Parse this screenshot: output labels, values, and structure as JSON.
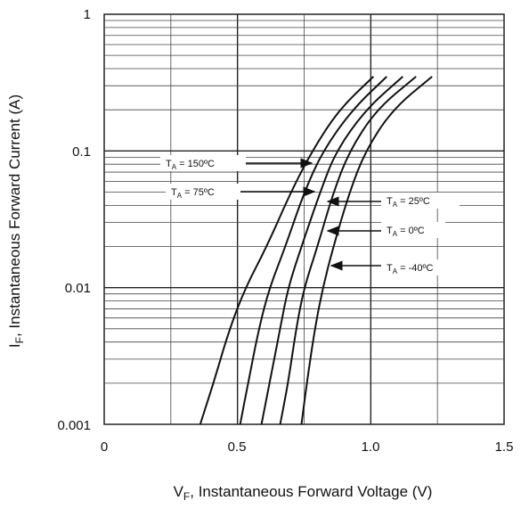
{
  "chart_data": {
    "type": "line",
    "xlabel_main": "V",
    "xlabel_sub": "F",
    "xlabel_rest": ", Instantaneous Forward Voltage (V)",
    "ylabel_main": "I",
    "ylabel_sub": "F",
    "ylabel_rest": ", Instantaneous Forward Current (A)",
    "x_ticks": [
      "0",
      "0.5",
      "1.0",
      "1.5"
    ],
    "y_ticks": [
      "1",
      "0.1",
      "0.01",
      "0.001"
    ],
    "xlim": [
      0,
      1.5
    ],
    "ylim": [
      0.001,
      1
    ],
    "y_scale": "log",
    "grid": true,
    "series": [
      {
        "t_main": "T",
        "t_sub": "A",
        "t_rest": " = 150ºC",
        "points": [
          [
            0.36,
            0.001
          ],
          [
            0.41,
            0.002
          ],
          [
            0.47,
            0.005
          ],
          [
            0.53,
            0.01
          ],
          [
            0.61,
            0.02
          ],
          [
            0.7,
            0.05
          ],
          [
            0.78,
            0.1
          ],
          [
            0.88,
            0.2
          ],
          [
            1.01,
            0.35
          ]
        ]
      },
      {
        "t_main": "T",
        "t_sub": "A",
        "t_rest": " = 75ºC",
        "points": [
          [
            0.51,
            0.001
          ],
          [
            0.54,
            0.002
          ],
          [
            0.58,
            0.005
          ],
          [
            0.62,
            0.01
          ],
          [
            0.68,
            0.02
          ],
          [
            0.75,
            0.05
          ],
          [
            0.82,
            0.1
          ],
          [
            0.93,
            0.2
          ],
          [
            1.06,
            0.35
          ]
        ]
      },
      {
        "t_main": "T",
        "t_sub": "A",
        "t_rest": " = 25ºC",
        "points": [
          [
            0.59,
            0.001
          ],
          [
            0.62,
            0.002
          ],
          [
            0.66,
            0.005
          ],
          [
            0.69,
            0.01
          ],
          [
            0.74,
            0.02
          ],
          [
            0.81,
            0.05
          ],
          [
            0.87,
            0.1
          ],
          [
            0.98,
            0.2
          ],
          [
            1.12,
            0.35
          ]
        ]
      },
      {
        "t_main": "T",
        "t_sub": "A",
        "t_rest": " = 0ºC",
        "points": [
          [
            0.66,
            0.001
          ],
          [
            0.69,
            0.002
          ],
          [
            0.72,
            0.005
          ],
          [
            0.75,
            0.01
          ],
          [
            0.8,
            0.02
          ],
          [
            0.86,
            0.05
          ],
          [
            0.92,
            0.1
          ],
          [
            1.02,
            0.2
          ],
          [
            1.17,
            0.35
          ]
        ]
      },
      {
        "t_main": "T",
        "t_sub": "A",
        "t_rest": " = -40ºC",
        "points": [
          [
            0.74,
            0.001
          ],
          [
            0.76,
            0.002
          ],
          [
            0.79,
            0.005
          ],
          [
            0.82,
            0.01
          ],
          [
            0.86,
            0.02
          ],
          [
            0.92,
            0.05
          ],
          [
            0.98,
            0.1
          ],
          [
            1.08,
            0.2
          ],
          [
            1.23,
            0.35
          ]
        ]
      }
    ]
  }
}
